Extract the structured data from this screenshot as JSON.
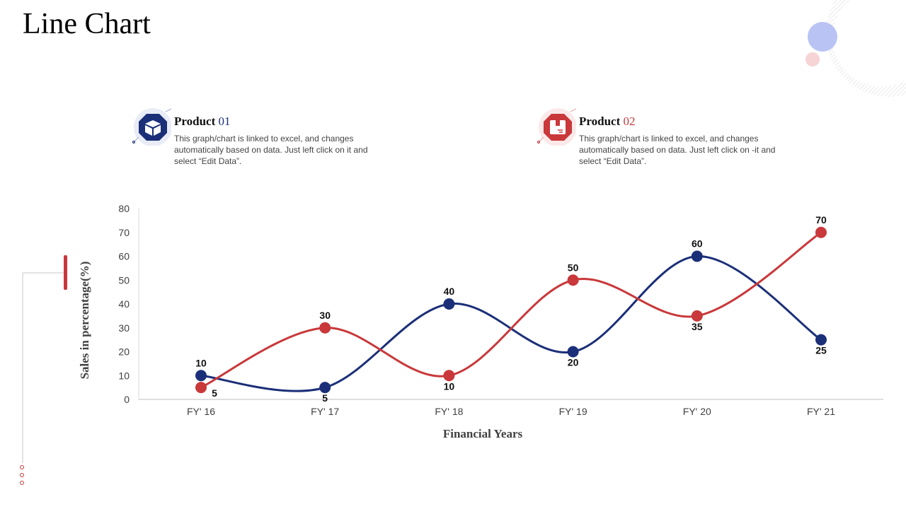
{
  "page": {
    "title": "Line Chart"
  },
  "legend": [
    {
      "title": "Product",
      "number": "01",
      "description": "This graph/chart is linked to excel, and changes automatically based on data. Just left click on it and select “Edit Data”.",
      "icon": "package-box-icon",
      "color": "#1b2f78"
    },
    {
      "title": "Product",
      "number": "02",
      "description": "This graph/chart is linked to excel, and changes automatically based on data. Just left click on -it and select “Edit Data”.",
      "icon": "package-box-icon",
      "color": "#c9383a"
    }
  ],
  "chart_data": {
    "type": "line",
    "title": "",
    "xlabel": "Financial Years",
    "ylabel": "Sales in percentage(%)",
    "categories": [
      "FY' 16",
      "FY' 17",
      "FY' 18",
      "FY' 19",
      "FY' 20",
      "FY' 21"
    ],
    "ylim": [
      0,
      80
    ],
    "yticks": [
      0,
      10,
      20,
      30,
      40,
      50,
      60,
      70,
      80
    ],
    "grid": false,
    "smooth": true,
    "series": [
      {
        "name": "Product 01",
        "color": "#1b2f78",
        "values": [
          10,
          5,
          40,
          20,
          60,
          25
        ]
      },
      {
        "name": "Product 02",
        "color": "#c9383a",
        "values": [
          5,
          30,
          10,
          50,
          35,
          70
        ]
      }
    ]
  }
}
